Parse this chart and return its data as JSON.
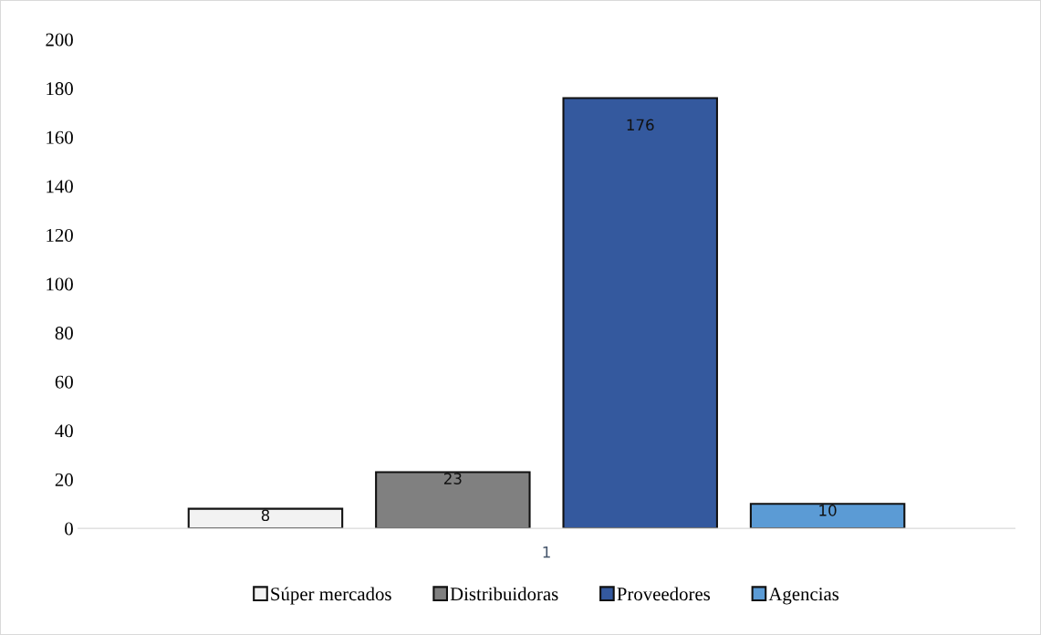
{
  "chart_data": {
    "type": "bar",
    "categories": [
      "1"
    ],
    "series": [
      {
        "name": "Súper mercados",
        "color": "#f2f2f2",
        "values": [
          8
        ]
      },
      {
        "name": "Distribuidoras",
        "color": "#808080",
        "values": [
          23
        ]
      },
      {
        "name": "Proveedores",
        "color": "#34599e",
        "values": [
          176
        ]
      },
      {
        "name": "Agencias",
        "color": "#5b9bd5",
        "values": [
          10
        ]
      }
    ],
    "ylim": [
      0,
      200
    ],
    "yticks": [
      0,
      20,
      40,
      60,
      80,
      100,
      120,
      140,
      160,
      180,
      200
    ],
    "data_labels": true,
    "grid": false,
    "legend": "bottom"
  }
}
